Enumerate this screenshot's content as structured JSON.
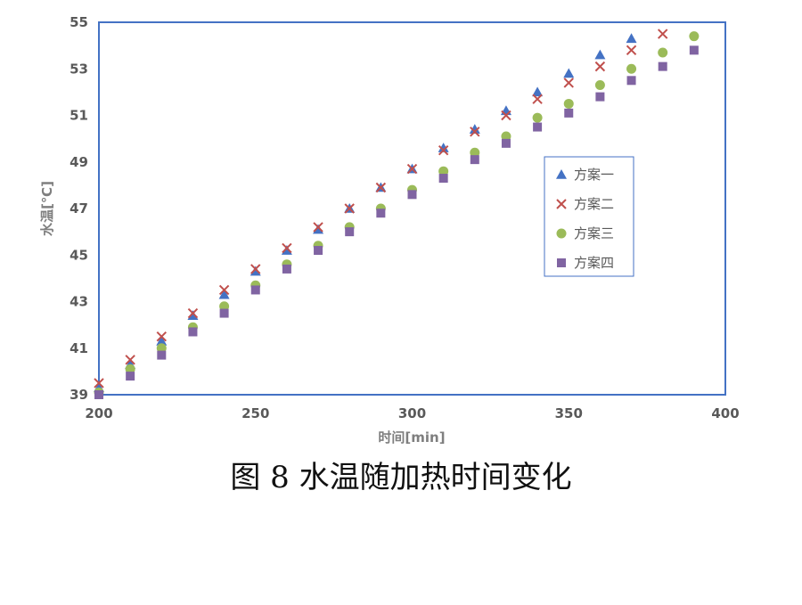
{
  "caption": "图 8  水温随加热时间变化",
  "chart_data": {
    "type": "scatter",
    "xlabel": "时间[min]",
    "ylabel": "水温[℃]",
    "xlim": [
      200,
      400
    ],
    "ylim": [
      39,
      55
    ],
    "x_ticks": [
      200,
      250,
      300,
      350,
      400
    ],
    "y_ticks": [
      39,
      41,
      43,
      45,
      47,
      49,
      51,
      53,
      55
    ],
    "grid": false,
    "legend_position": "right",
    "series": [
      {
        "name": "方案一",
        "marker": "triangle",
        "color": "#4472c4",
        "x": [
          200,
          210,
          220,
          230,
          240,
          250,
          260,
          270,
          280,
          290,
          300,
          310,
          320,
          330,
          340,
          350,
          360,
          370
        ],
        "y": [
          39.3,
          40.3,
          41.3,
          42.4,
          43.3,
          44.3,
          45.2,
          46.1,
          47.0,
          47.9,
          48.7,
          49.6,
          50.4,
          51.2,
          52.0,
          52.8,
          53.6,
          54.3
        ]
      },
      {
        "name": "方案二",
        "marker": "x",
        "color": "#c0504d",
        "x": [
          200,
          210,
          220,
          230,
          240,
          250,
          260,
          270,
          280,
          290,
          300,
          310,
          320,
          330,
          340,
          350,
          360,
          370,
          380
        ],
        "y": [
          39.5,
          40.5,
          41.5,
          42.5,
          43.5,
          44.4,
          45.3,
          46.2,
          47.0,
          47.9,
          48.7,
          49.5,
          50.3,
          51.0,
          51.7,
          52.4,
          53.1,
          53.8,
          54.5
        ]
      },
      {
        "name": "方案三",
        "marker": "circle",
        "color": "#9bbb59",
        "x": [
          200,
          210,
          220,
          230,
          240,
          250,
          260,
          270,
          280,
          290,
          300,
          310,
          320,
          330,
          340,
          350,
          360,
          370,
          380,
          390
        ],
        "y": [
          39.1,
          40.1,
          41.0,
          41.9,
          42.8,
          43.7,
          44.6,
          45.4,
          46.2,
          47.0,
          47.8,
          48.6,
          49.4,
          50.1,
          50.9,
          51.5,
          52.3,
          53.0,
          53.7,
          54.4
        ]
      },
      {
        "name": "方案四",
        "marker": "square",
        "color": "#8064a2",
        "x": [
          200,
          210,
          220,
          230,
          240,
          250,
          260,
          270,
          280,
          290,
          300,
          310,
          320,
          330,
          340,
          350,
          360,
          370,
          380,
          390
        ],
        "y": [
          39.0,
          39.8,
          40.7,
          41.7,
          42.5,
          43.5,
          44.4,
          45.2,
          46.0,
          46.8,
          47.6,
          48.3,
          49.1,
          49.8,
          50.5,
          51.1,
          51.8,
          52.5,
          53.1,
          53.8
        ]
      }
    ]
  }
}
